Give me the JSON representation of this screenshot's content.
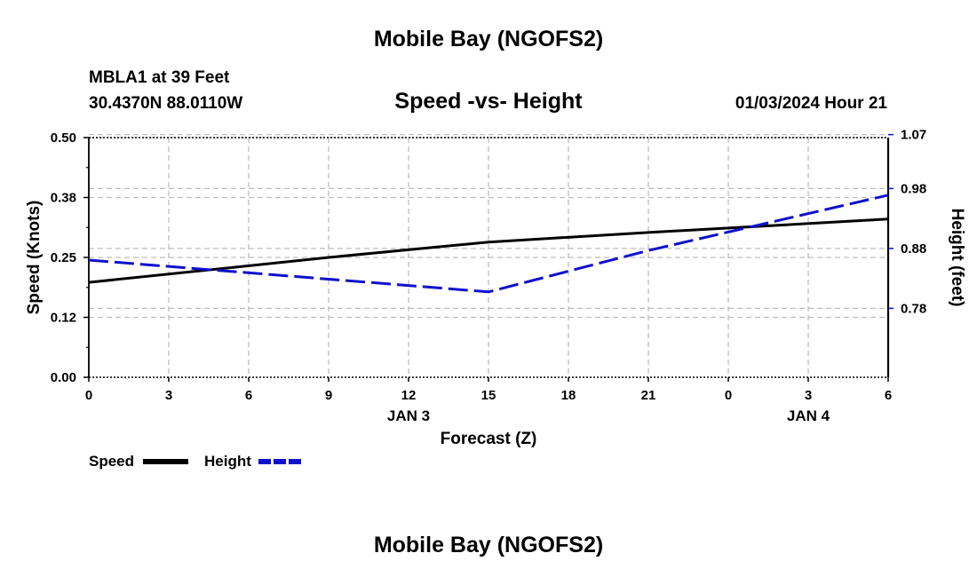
{
  "page": {
    "title": "Mobile Bay (NGOFS2)",
    "footer_title": "Mobile Bay (NGOFS2)"
  },
  "station": {
    "line1": "MBLA1 at 39 Feet",
    "line2": "30.4370N  88.0110W"
  },
  "subtitle": "Speed -vs- Height",
  "datetime": "01/03/2024 Hour 21",
  "legend": {
    "speed_label": "Speed",
    "height_label": "Height"
  },
  "chart_data": {
    "type": "line",
    "title": "Speed -vs- Height",
    "xlabel": "Forecast (Z)",
    "x": [
      0,
      3,
      6,
      9,
      12,
      15,
      18,
      21,
      24,
      27,
      30
    ],
    "x_tick_labels": [
      "0",
      "3",
      "6",
      "9",
      "12",
      "15",
      "18",
      "21",
      "0",
      "3",
      "6"
    ],
    "x_date_labels": [
      {
        "x": 12,
        "label": "JAN 3"
      },
      {
        "x": 27,
        "label": "JAN 4"
      }
    ],
    "xlim": [
      0,
      30
    ],
    "left_axis": {
      "label": "Speed (Knots)",
      "ylim": [
        0,
        0.5
      ],
      "ticks": [
        0.0,
        0.125,
        0.25,
        0.375,
        0.5
      ],
      "tick_labels": [
        "0.00",
        "0.12",
        "0.25",
        "0.38",
        "0.50"
      ]
    },
    "right_axis": {
      "label": "Height (feet)",
      "ylim": [
        0.665,
        1.065
      ],
      "ticks": [
        0.78,
        0.88,
        0.98,
        1.07
      ],
      "tick_labels": [
        "0.78",
        "0.88",
        "0.98",
        "1.07"
      ]
    },
    "grid": true,
    "series": [
      {
        "name": "Speed",
        "axis": "left",
        "color": "#000000",
        "style": "solid",
        "points": [
          [
            0,
            0.198
          ],
          [
            9,
            0.25
          ],
          [
            15,
            0.282
          ],
          [
            21,
            0.302
          ],
          [
            30,
            0.33
          ]
        ]
      },
      {
        "name": "Height",
        "axis": "right",
        "color": "#1010cc",
        "style": "dashed",
        "points": [
          [
            0,
            0.8605
          ],
          [
            15,
            0.8075
          ],
          [
            21,
            0.8765
          ],
          [
            30,
            0.969
          ]
        ]
      }
    ]
  }
}
